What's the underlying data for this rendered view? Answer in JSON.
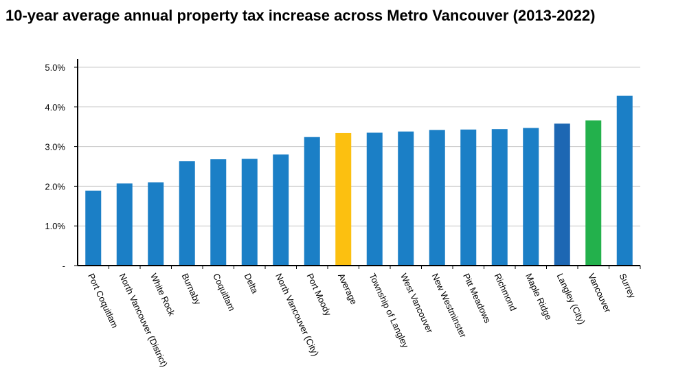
{
  "chart_data": {
    "type": "bar",
    "title": "10-year average annual property tax increase across Metro Vancouver (2013-2022)",
    "xlabel": "",
    "ylabel": "",
    "ylim": [
      0,
      5.0
    ],
    "grid": true,
    "y_ticks": [
      {
        "value": 0,
        "label": "-"
      },
      {
        "value": 1.0,
        "label": "1.0%"
      },
      {
        "value": 2.0,
        "label": "2.0%"
      },
      {
        "value": 3.0,
        "label": "3.0%"
      },
      {
        "value": 4.0,
        "label": "4.0%"
      },
      {
        "value": 5.0,
        "label": "5.0%"
      }
    ],
    "categories": [
      "Port Coquitlam",
      "North Vancouver (District)",
      "White Rock",
      "Burnaby",
      "Coquitlam",
      "Delta",
      "North Vancouver (City)",
      "Port Moody",
      "Average",
      "Township of Langley",
      "West Vancouver",
      "New Westminster",
      "Pitt Meadows",
      "Richmond",
      "Maple Ridge",
      "Langley (City)",
      "Vancouver",
      "Surrey"
    ],
    "values": [
      1.89,
      2.07,
      2.1,
      2.63,
      2.68,
      2.69,
      2.8,
      3.24,
      3.34,
      3.35,
      3.38,
      3.42,
      3.43,
      3.44,
      3.47,
      3.58,
      3.66,
      4.28
    ],
    "colors": {
      "default": "#1b7fc6",
      "highlight_average": "#fcc010",
      "highlight_langley_city": "#1d67b3",
      "highlight_vancouver": "#23b14c",
      "gridline": "#c8c8c8",
      "axis": "#000000"
    },
    "bar_color_keys": [
      "default",
      "default",
      "default",
      "default",
      "default",
      "default",
      "default",
      "default",
      "highlight_average",
      "default",
      "default",
      "default",
      "default",
      "default",
      "default",
      "highlight_langley_city",
      "highlight_vancouver",
      "default"
    ]
  }
}
